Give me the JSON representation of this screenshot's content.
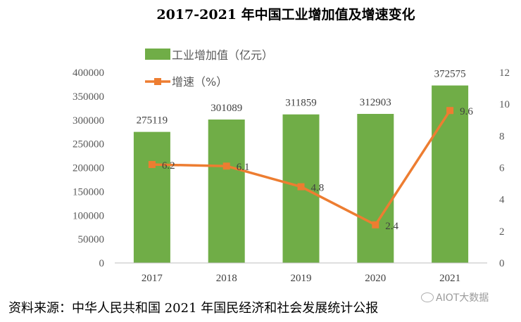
{
  "chart_data": {
    "type": "bar",
    "title": "2017-2021 年中国工业增加值及增速变化",
    "categories": [
      "2017",
      "2018",
      "2019",
      "2020",
      "2021"
    ],
    "series": [
      {
        "name": "工业增加值（亿元）",
        "type": "bar",
        "axis": "left",
        "color": "#70ad47",
        "values": [
          275119,
          301089,
          311859,
          312903,
          372575
        ]
      },
      {
        "name": "增速（%）",
        "type": "line",
        "axis": "right",
        "color": "#ed7d31",
        "values": [
          6.2,
          6.1,
          4.8,
          2.4,
          9.6
        ]
      }
    ],
    "ylim_left": [
      0,
      400000
    ],
    "yticks_left": [
      0,
      50000,
      100000,
      150000,
      200000,
      250000,
      300000,
      350000,
      400000
    ],
    "ylim_right": [
      0,
      12
    ],
    "yticks_right": [
      0,
      2,
      4,
      6,
      8,
      10,
      12
    ],
    "xlabel": "",
    "ylabel": "",
    "grid": false,
    "legend": "top-left"
  },
  "source": "资料来源：中华人民共和国 2021 年国民经济和社会发展统计公报",
  "watermark": "AIOT大数据"
}
